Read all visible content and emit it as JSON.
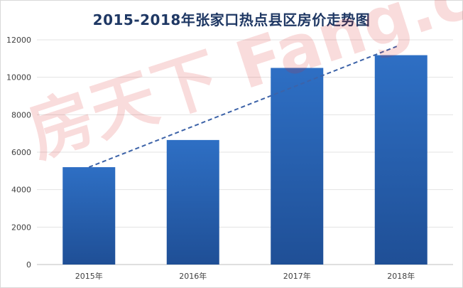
{
  "chart_data": {
    "type": "bar",
    "title": "2015-2018年张家口热点县区房价走势图",
    "categories": [
      "2015年",
      "2016年",
      "2017年",
      "2018年"
    ],
    "values": [
      5200,
      6650,
      10500,
      11180
    ],
    "ylim": [
      0,
      12000
    ],
    "yticks": [
      0,
      2000,
      4000,
      6000,
      8000,
      10000,
      12000
    ],
    "grid": true,
    "trendline": {
      "style": "dashed",
      "from_value": 5200,
      "to_value": 11650
    },
    "bar_color": "#2e6fc4",
    "bar_color_dark": "#1f4f96",
    "trend_color": "#3d63a8"
  },
  "watermark": "房天下 Fang.com"
}
